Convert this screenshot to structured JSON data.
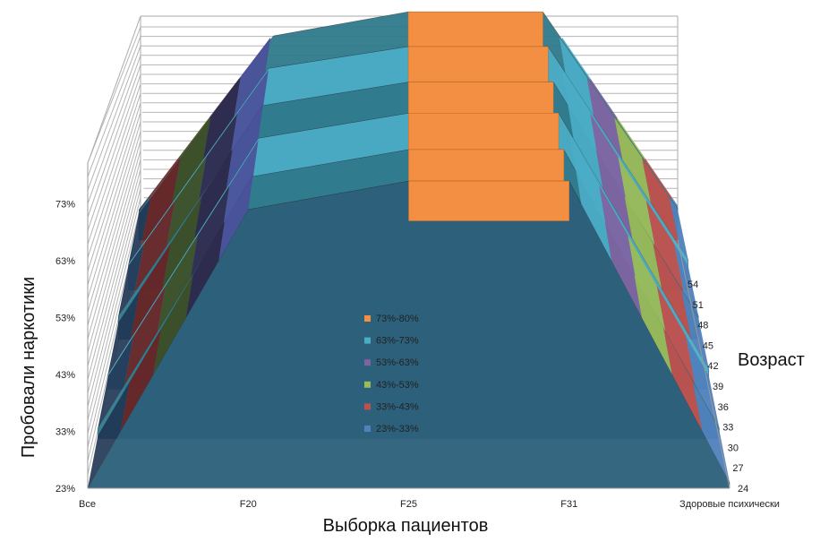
{
  "chart_data": {
    "type": "surface",
    "xlabel": "Выборка пациентов",
    "ylabel": "Пробовали наркотики",
    "zlabel": "Возраст",
    "x_categories": [
      "Все",
      "F20",
      "F25",
      "F31",
      "Здоровые психически"
    ],
    "y_ticks": [
      "23%",
      "33%",
      "43%",
      "53%",
      "63%",
      "73%"
    ],
    "z_ticks": [
      "24",
      "27",
      "30",
      "33",
      "36",
      "39",
      "42",
      "45",
      "48",
      "51",
      "54"
    ],
    "ylim": [
      23,
      80
    ],
    "legend": {
      "position": "center",
      "entries": [
        {
          "label": "73%-80%",
          "color": "#f28f43"
        },
        {
          "label": "63%-73%",
          "color": "#4bacc6"
        },
        {
          "label": "53%-63%",
          "color": "#8064a2"
        },
        {
          "label": "43%-53%",
          "color": "#9bbb59"
        },
        {
          "label": "33%-43%",
          "color": "#c0504d"
        },
        {
          "label": "23%-33%",
          "color": "#4f81bd"
        }
      ]
    },
    "series_by_age": [
      {
        "age": "24",
        "values": [
          23,
          72,
          77,
          77,
          24
        ]
      },
      {
        "age": "30",
        "values": [
          25,
          72,
          77,
          77,
          25
        ]
      },
      {
        "age": "36",
        "values": [
          26,
          73,
          78,
          78,
          27
        ]
      },
      {
        "age": "42",
        "values": [
          28,
          73,
          78,
          78,
          28
        ]
      },
      {
        "age": "48",
        "values": [
          29,
          74,
          79,
          79,
          30
        ]
      },
      {
        "age": "54",
        "values": [
          30,
          74,
          80,
          80,
          31
        ]
      }
    ]
  }
}
